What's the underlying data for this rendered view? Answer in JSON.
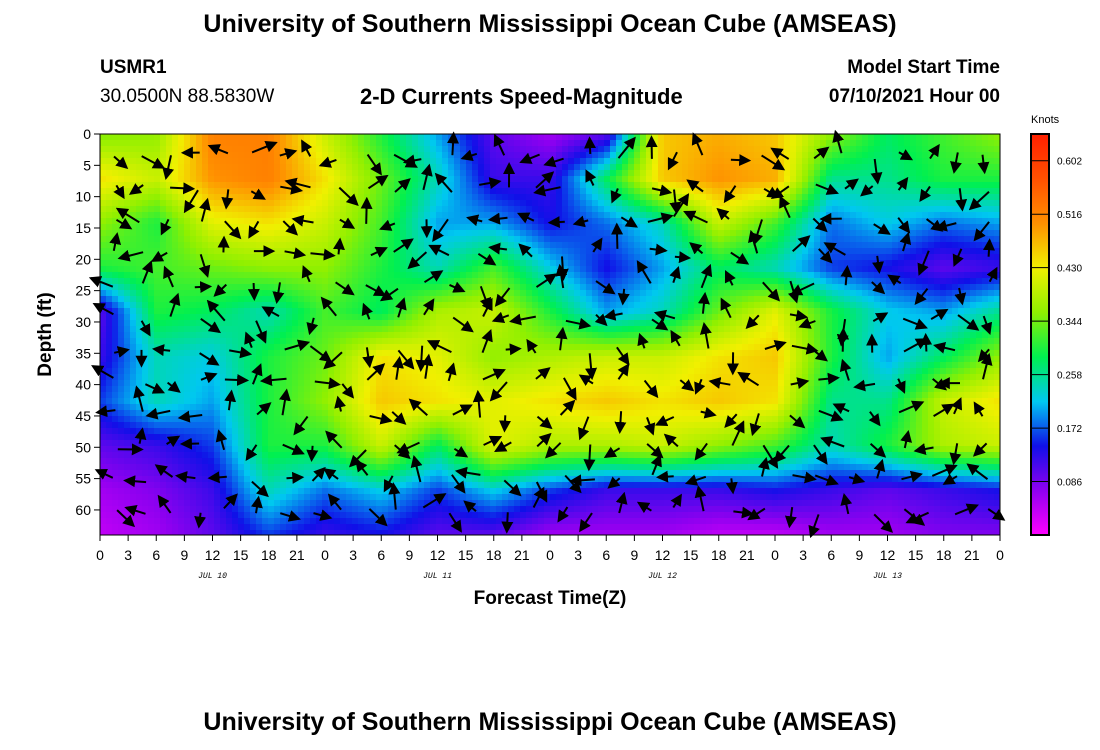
{
  "header": {
    "title_top": "University of Southern Mississippi Ocean Cube (AMSEAS)",
    "title_bottom": "University of Southern Mississippi Ocean Cube (AMSEAS)",
    "station": "USMR1",
    "coordinates": "30.0500N  88.5830W",
    "subtitle": "2-D Currents Speed-Magnitude",
    "start_label": "Model Start Time",
    "start_value": "07/10/2021 Hour 00"
  },
  "colors": {
    "scale": [
      "#ff00ff",
      "#9000f0",
      "#1010e8",
      "#00c8f0",
      "#00f050",
      "#90f000",
      "#f0f000",
      "#ff9000",
      "#ff5000",
      "#ff2000"
    ],
    "arrow": "#000000",
    "frame": "#000000"
  },
  "chart_data": {
    "type": "heatmap",
    "xlabel": "Forecast Time(Z)",
    "ylabel": "Depth (ft)",
    "x_ticks": [
      "0",
      "3",
      "6",
      "9",
      "12",
      "15",
      "18",
      "21",
      "0",
      "3",
      "6",
      "9",
      "12",
      "15",
      "18",
      "21",
      "0",
      "3",
      "6",
      "9",
      "12",
      "15",
      "18",
      "21",
      "0",
      "3",
      "6",
      "9",
      "12",
      "15",
      "18",
      "21",
      "0"
    ],
    "date_labels": [
      "JUL 10",
      "JUL 11",
      "JUL 12",
      "JUL 13"
    ],
    "y_ticks": [
      "0",
      "5",
      "10",
      "15",
      "20",
      "25",
      "30",
      "35",
      "40",
      "45",
      "50",
      "55",
      "60"
    ],
    "ylim": [
      0,
      64
    ],
    "xlim_hours": [
      0,
      96
    ],
    "colorbar": {
      "label": "Knots",
      "ticks": [
        "0.602",
        "0.516",
        "0.430",
        "0.344",
        "0.258",
        "0.172",
        "0.086"
      ],
      "range": [
        0.0,
        0.645
      ]
    },
    "speed_anchors_knots": [
      [
        0.35,
        0.36,
        0.52,
        0.52,
        0.4,
        0.3,
        0.2,
        0.1,
        0.06,
        0.1,
        0.46,
        0.48,
        0.46,
        0.36,
        0.28,
        0.32,
        0.36
      ],
      [
        0.44,
        0.4,
        0.5,
        0.52,
        0.44,
        0.34,
        0.24,
        0.12,
        0.12,
        0.28,
        0.46,
        0.5,
        0.48,
        0.26,
        0.26,
        0.3,
        0.3
      ],
      [
        0.36,
        0.3,
        0.42,
        0.44,
        0.4,
        0.32,
        0.2,
        0.2,
        0.14,
        0.18,
        0.24,
        0.4,
        0.32,
        0.18,
        0.22,
        0.18,
        0.2
      ],
      [
        0.3,
        0.32,
        0.34,
        0.36,
        0.36,
        0.3,
        0.24,
        0.32,
        0.22,
        0.14,
        0.2,
        0.28,
        0.24,
        0.16,
        0.14,
        0.1,
        0.12
      ],
      [
        0.1,
        0.3,
        0.28,
        0.24,
        0.32,
        0.28,
        0.38,
        0.4,
        0.3,
        0.2,
        0.24,
        0.34,
        0.42,
        0.3,
        0.22,
        0.2,
        0.26
      ],
      [
        0.12,
        0.24,
        0.22,
        0.3,
        0.34,
        0.44,
        0.42,
        0.36,
        0.38,
        0.4,
        0.4,
        0.44,
        0.46,
        0.3,
        0.2,
        0.28,
        0.36
      ],
      [
        0.16,
        0.24,
        0.2,
        0.3,
        0.36,
        0.46,
        0.44,
        0.42,
        0.44,
        0.46,
        0.44,
        0.46,
        0.44,
        0.26,
        0.26,
        0.4,
        0.44
      ],
      [
        0.1,
        0.12,
        0.16,
        0.3,
        0.3,
        0.4,
        0.28,
        0.42,
        0.38,
        0.38,
        0.4,
        0.36,
        0.32,
        0.24,
        0.3,
        0.38,
        0.4
      ],
      [
        0.06,
        0.08,
        0.12,
        0.24,
        0.18,
        0.22,
        0.16,
        0.22,
        0.16,
        0.12,
        0.12,
        0.12,
        0.14,
        0.12,
        0.1,
        0.12,
        0.14
      ],
      [
        0.04,
        0.06,
        0.1,
        0.16,
        0.12,
        0.14,
        0.1,
        0.1,
        0.06,
        0.06,
        0.06,
        0.04,
        0.04,
        0.06,
        0.06,
        0.08,
        0.08
      ]
    ]
  }
}
